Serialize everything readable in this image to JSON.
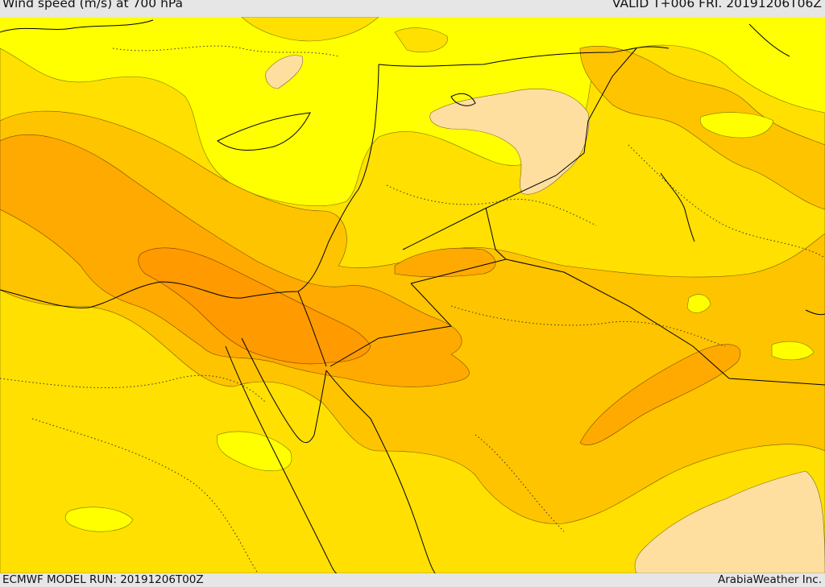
{
  "header": {
    "title": "Wind speed (m/s) at 700 hPa",
    "valid": "VALID T+006 FRI. 20191206T06Z"
  },
  "footer": {
    "model_run": "ECMWF MODEL RUN: 20191206T00Z",
    "credit": "ArabiaWeather Inc."
  },
  "colors": {
    "band_lightest": "#ffff00",
    "band_light": "#ffe000",
    "band_mid": "#ffc400",
    "band_strong": "#ffaa00",
    "band_strongest": "#ff9a00",
    "band_calm": "#ffdfa0",
    "coastline": "#000000",
    "border": "#000000"
  }
}
